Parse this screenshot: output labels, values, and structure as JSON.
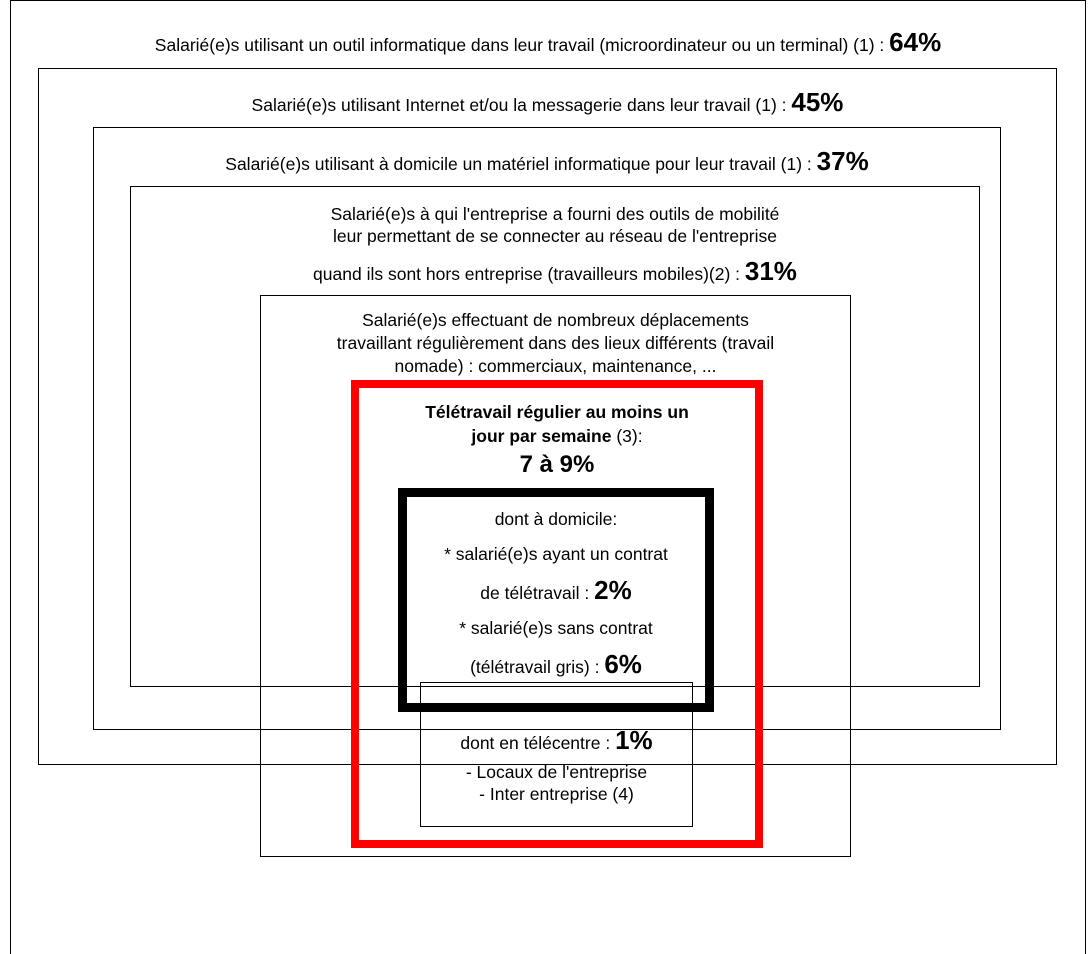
{
  "frame": {
    "line1": {
      "text": "Salarié(e)s utilisant un outil informatique dans leur travail (microordinateur ou un terminal) (1) : ",
      "pct": "64%"
    }
  },
  "level2": {
    "text": "Salarié(e)s utilisant Internet et/ou la messagerie dans leur travail (1) : ",
    "pct": "45%"
  },
  "level3": {
    "text": "Salarié(e)s utilisant à domicile un matériel informatique pour leur travail (1) : ",
    "pct": "37%"
  },
  "level4": {
    "line1": "Salarié(e)s à qui l'entreprise a fourni des outils de mobilité",
    "line2": "leur permettant de se connecter au réseau de l'entreprise",
    "line3": "quand ils sont hors entreprise (travailleurs mobiles)(2) : ",
    "pct": "31%"
  },
  "level5": {
    "line1": "Salarié(e)s effectuant de nombreux déplacements",
    "line2": "travaillant régulièrement dans des lieux différents (travail",
    "line3": "nomade) : commerciaux, maintenance, ..."
  },
  "teletravail": {
    "line1": "Télétravail régulier au moins un",
    "line2_bold": "jour par semaine",
    "line2_rest": " (3):",
    "pct": "7 à 9%"
  },
  "domicile": {
    "title": "dont à domicile:",
    "item1_line1": "* salarié(e)s ayant un contrat",
    "item1_line2": "de télétravail : ",
    "item1_pct": "2%",
    "item2_line1": "* salarié(e)s sans contrat",
    "item2_line2": "(télétravail gris) : ",
    "item2_pct": "6%"
  },
  "telecentre": {
    "line1": "dont en télécentre : ",
    "pct": "1%",
    "line2": "- Locaux de l'entreprise",
    "line3": "- Inter entreprise (4)"
  },
  "colors": {
    "accent": "#ff0000",
    "border": "#000000"
  }
}
